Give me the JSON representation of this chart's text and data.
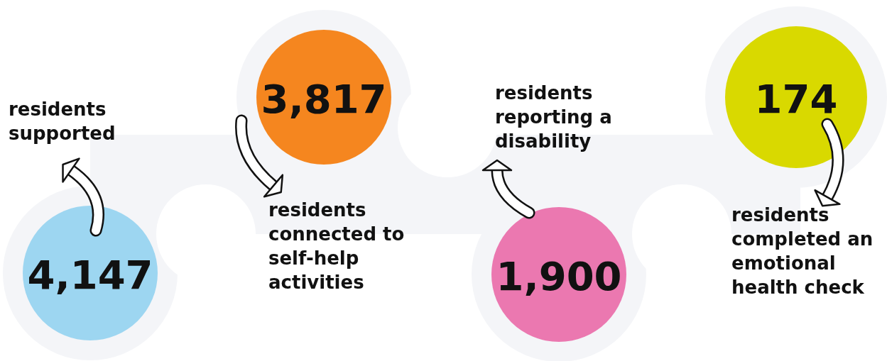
{
  "chart_data": {
    "type": "other",
    "categories": [
      "residents supported",
      "residents connected to self-help activities",
      "residents reporting a disability",
      "residents completed an emotional health check"
    ],
    "values": [
      4147,
      3817,
      1900,
      174
    ],
    "value_labels": [
      "4,147",
      "3,817",
      "1,900",
      "174"
    ],
    "colors": [
      "#9dd6f1",
      "#f5861f",
      "#eb78b0",
      "#d9d900"
    ]
  }
}
